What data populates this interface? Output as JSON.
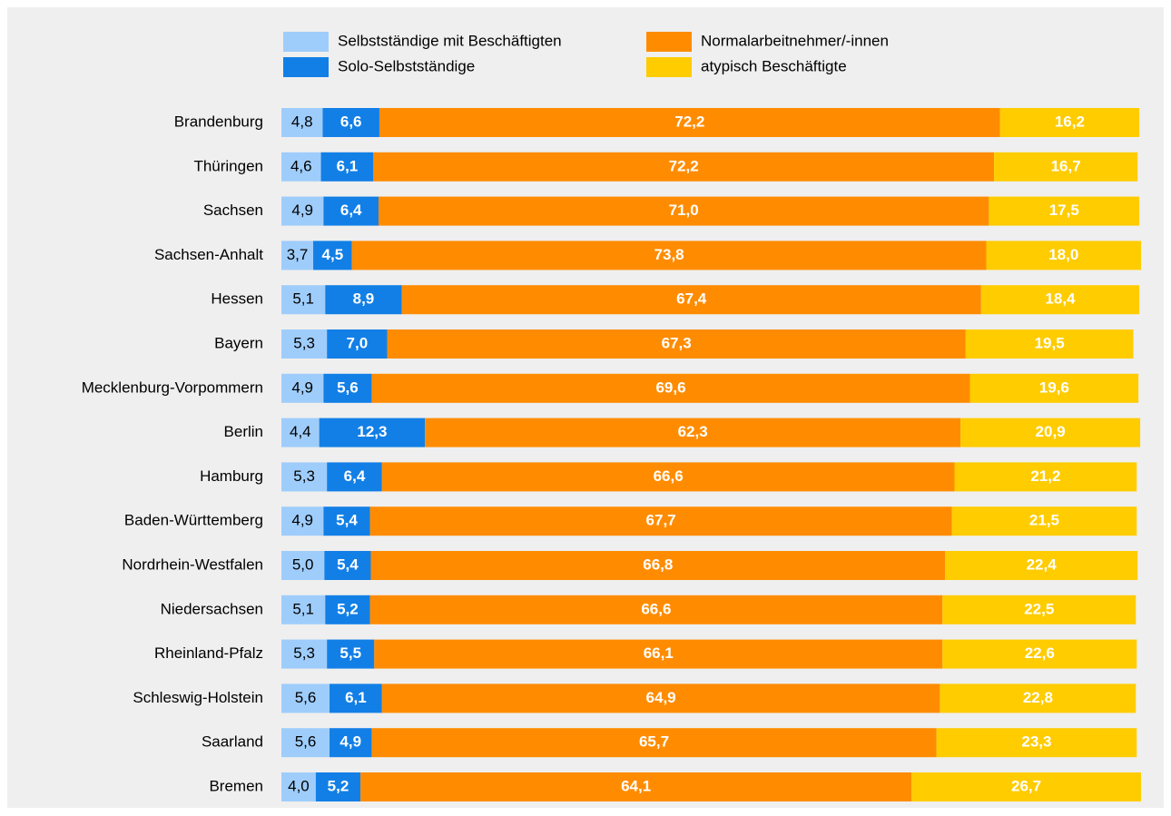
{
  "chart_data": {
    "type": "stacked-bar-horizontal",
    "categories": [
      "Brandenburg",
      "Thüringen",
      "Sachsen",
      "Sachsen-Anhalt",
      "Hessen",
      "Bayern",
      "Mecklenburg-Vorpommern",
      "Berlin",
      "Hamburg",
      "Baden-Württemberg",
      "Nordrhein-Westfalen",
      "Niedersachsen",
      "Rheinland-Pfalz",
      "Schleswig-Holstein",
      "Saarland",
      "Bremen"
    ],
    "series": [
      {
        "name": "Selbstständige mit Beschäftigten",
        "color": "#9fcdfb",
        "values": [
          4.8,
          4.6,
          4.9,
          3.7,
          5.1,
          5.3,
          4.9,
          4.4,
          5.3,
          4.9,
          5.0,
          5.1,
          5.3,
          5.6,
          5.6,
          4.0
        ],
        "value_labels": [
          "4,8",
          "4,6",
          "4,9",
          "3,7",
          "5,1",
          "5,3",
          "4,9",
          "4,4",
          "5,3",
          "4,9",
          "5,0",
          "5,1",
          "5,3",
          "5,6",
          "5,6",
          "4,0"
        ]
      },
      {
        "name": "Solo-Selbstständige",
        "color": "#127fe6",
        "values": [
          6.6,
          6.1,
          6.4,
          4.5,
          8.9,
          7.0,
          5.6,
          12.3,
          6.4,
          5.4,
          5.4,
          5.2,
          5.5,
          6.1,
          4.9,
          5.2
        ],
        "value_labels": [
          "6,6",
          "6,1",
          "6,4",
          "4,5",
          "8,9",
          "7,0",
          "5,6",
          "12,3",
          "6,4",
          "5,4",
          "5,4",
          "5,2",
          "5,5",
          "6,1",
          "4,9",
          "5,2"
        ]
      },
      {
        "name": "Normalarbeitnehmer/-innen",
        "color": "#ff8c00",
        "values": [
          72.2,
          72.2,
          71.0,
          73.8,
          67.4,
          67.3,
          69.6,
          62.3,
          66.6,
          67.7,
          66.8,
          66.6,
          66.1,
          64.9,
          65.7,
          64.1
        ],
        "value_labels": [
          "72,2",
          "72,2",
          "71,0",
          "73,8",
          "67,4",
          "67,3",
          "69,6",
          "62,3",
          "66,6",
          "67,7",
          "66,8",
          "66,6",
          "66,1",
          "64,9",
          "65,7",
          "64,1"
        ]
      },
      {
        "name": "atypisch Beschäftigte",
        "color": "#ffcc00",
        "values": [
          16.2,
          16.7,
          17.5,
          18.0,
          18.4,
          19.5,
          19.6,
          20.9,
          21.2,
          21.5,
          22.4,
          22.5,
          22.6,
          22.8,
          23.3,
          26.7
        ],
        "value_labels": [
          "16,2",
          "16,7",
          "17,5",
          "18,0",
          "18,4",
          "19,5",
          "19,6",
          "20,9",
          "21,2",
          "21,5",
          "22,4",
          "22,5",
          "22,6",
          "22,8",
          "23,3",
          "26,7"
        ]
      }
    ]
  }
}
